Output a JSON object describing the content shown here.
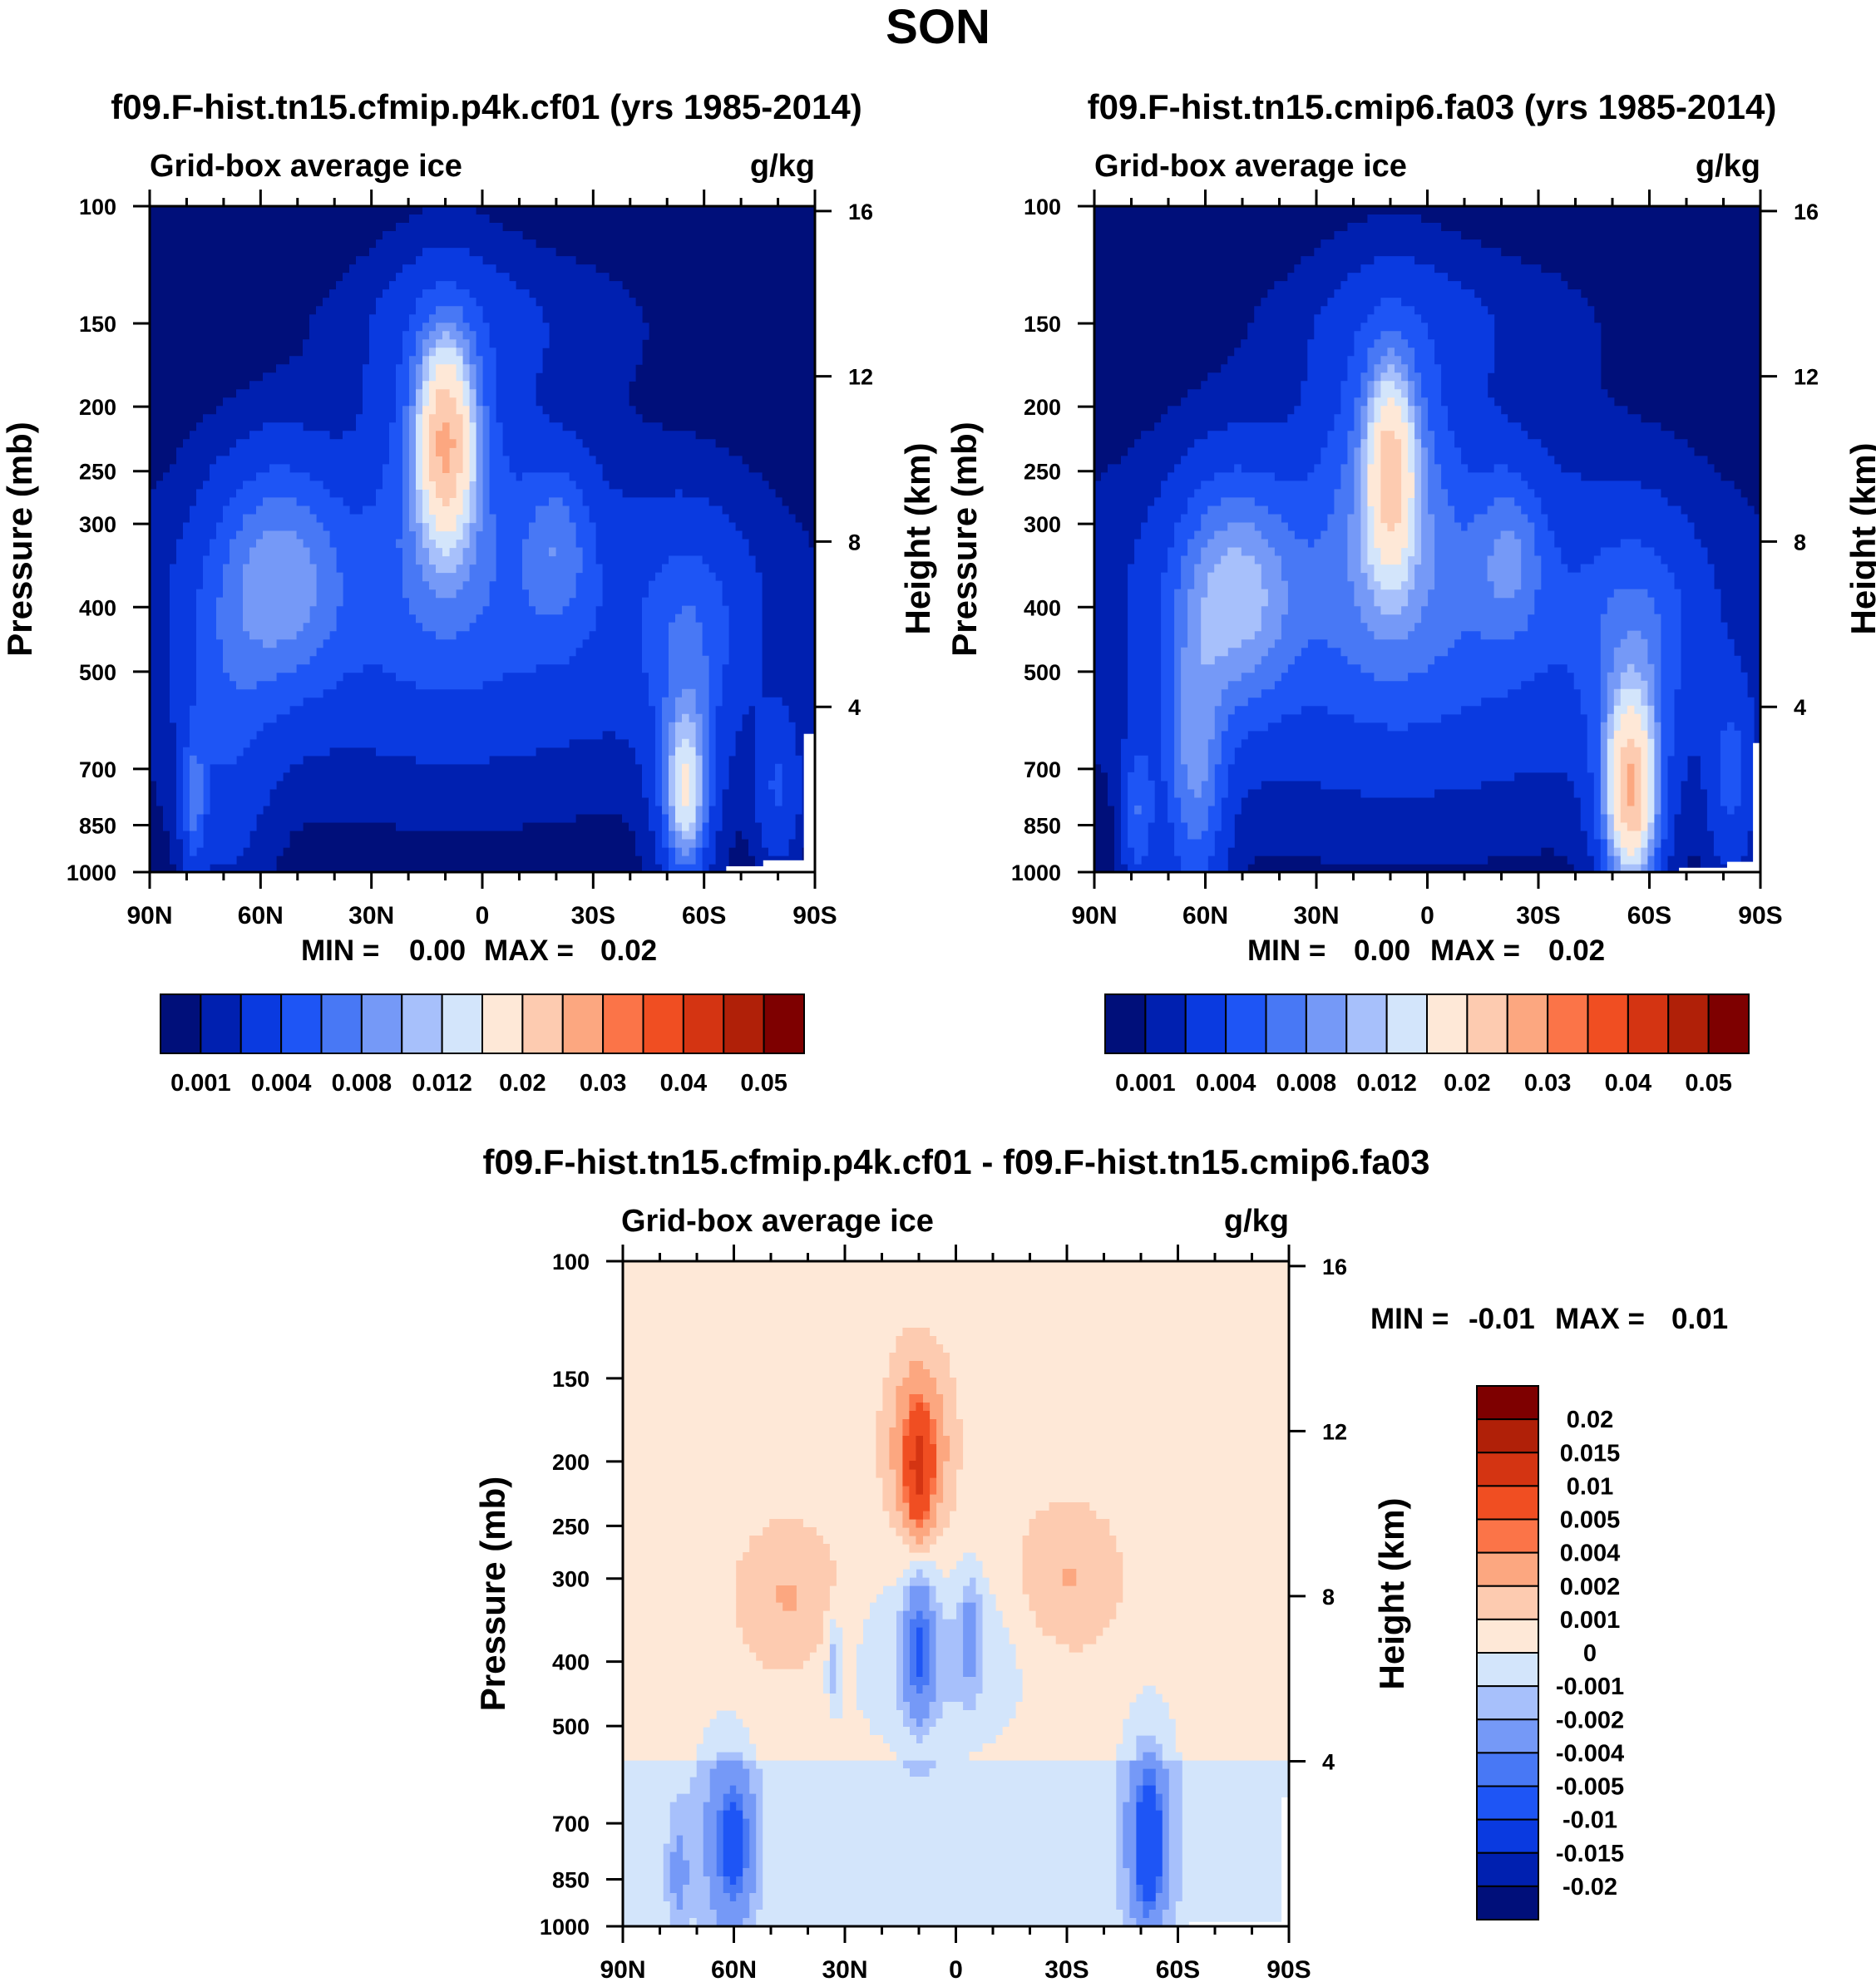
{
  "figure": {
    "title": "SON"
  },
  "colors": {
    "sequential": [
      "#000f7a",
      "#0020b0",
      "#0a3ae0",
      "#1e55f5",
      "#4878f5",
      "#7599f7",
      "#a7c0fb",
      "#d3e5fb",
      "#fee8d7",
      "#fdcbb0",
      "#fca780",
      "#fb7448",
      "#f04e22",
      "#d43412",
      "#b02008",
      "#7e0000"
    ],
    "diverging": [
      "#000f7a",
      "#0020b0",
      "#0a3ae0",
      "#1e55f5",
      "#4878f5",
      "#7599f7",
      "#a7c0fb",
      "#d3e5fb",
      "#fee8d7",
      "#fdcbb0",
      "#fca780",
      "#fb7448",
      "#f04e22",
      "#d43412",
      "#b02008",
      "#7e0000"
    ],
    "missing": "#ffffff"
  },
  "chart_data": [
    {
      "id": "panel1",
      "type": "heatmap",
      "subtype": "filled-contour",
      "title": "f09.F-hist.tn15.cfmip.p4k.cf01 (yrs 1985-2014)",
      "subtitle_left": "Grid-box average ice",
      "subtitle_right": "g/kg",
      "ylabel": "Pressure (mb)",
      "ylabel_right": "Height (km)",
      "x_ticks": [
        "90N",
        "60N",
        "30N",
        "0",
        "30S",
        "60S",
        "90S"
      ],
      "y_ticks": [
        "100",
        "150",
        "200",
        "250",
        "300",
        "400",
        "500",
        "700",
        "850",
        "1000"
      ],
      "y_values": [
        100,
        150,
        200,
        250,
        300,
        400,
        500,
        700,
        850,
        1000
      ],
      "right_ticks": [
        "16",
        "12",
        "8",
        "4"
      ],
      "right_values": [
        16,
        12,
        8,
        4
      ],
      "stats": {
        "min_label": "MIN =",
        "min": "0.00",
        "max_label": "MAX =",
        "max": "0.02"
      },
      "colorbar": {
        "orientation": "horizontal",
        "labels": [
          "0.001",
          "0.004",
          "0.008",
          "0.012",
          "0.02",
          "0.03",
          "0.04",
          "0.05"
        ]
      },
      "blobs": [
        {
          "lat": 5,
          "p": 420,
          "dlat": 75,
          "dz": 0.55,
          "amp": 0.0025
        },
        {
          "lat": 5,
          "p": 390,
          "dlat": 55,
          "dz": 0.42,
          "amp": 0.0015
        },
        {
          "lat": 10,
          "p": 225,
          "dlat": 7,
          "dz": 0.32,
          "amp": 0.02
        },
        {
          "lat": 10,
          "p": 240,
          "dlat": 17,
          "dz": 0.55,
          "amp": 0.005
        },
        {
          "lat": 55,
          "p": 360,
          "dlat": 16,
          "dz": 0.38,
          "amp": 0.007
        },
        {
          "lat": -20,
          "p": 320,
          "dlat": 9,
          "dz": 0.28,
          "amp": 0.0045
        },
        {
          "lat": 70,
          "p": 600,
          "dlat": 12,
          "dz": 0.55,
          "amp": 0.003
        },
        {
          "lat": 78,
          "p": 780,
          "dlat": 3,
          "dz": 0.22,
          "amp": 0.005
        },
        {
          "lat": -55,
          "p": 760,
          "dlat": 5,
          "dz": 0.25,
          "amp": 0.011
        },
        {
          "lat": -55,
          "p": 640,
          "dlat": 9,
          "dz": 0.45,
          "amp": 0.004
        },
        {
          "lat": -58,
          "p": 420,
          "dlat": 15,
          "dz": 0.35,
          "amp": 0.0025
        },
        {
          "lat": -80,
          "p": 750,
          "dlat": 6,
          "dz": 0.25,
          "amp": 0.0035
        },
        {
          "lat": 0,
          "p": 150,
          "dlat": 40,
          "dz": 0.25,
          "amp": 0.0015
        }
      ],
      "base": 0.0005,
      "missing": [
        {
          "lat_min": -90,
          "lat_max": -87,
          "p_min": 620,
          "p_max": 1000
        },
        {
          "lat_min": -90,
          "lat_max": -76,
          "p_min": 960,
          "p_max": 1000
        },
        {
          "lat_min": -90,
          "lat_max": -66,
          "p_min": 980,
          "p_max": 1000
        }
      ]
    },
    {
      "id": "panel2",
      "type": "heatmap",
      "subtype": "filled-contour",
      "title": "f09.F-hist.tn15.cmip6.fa03 (yrs 1985-2014)",
      "subtitle_left": "Grid-box average ice",
      "subtitle_right": "g/kg",
      "ylabel": "Pressure (mb)",
      "ylabel_right": "Height (km)",
      "x_ticks": [
        "90N",
        "60N",
        "30N",
        "0",
        "30S",
        "60S",
        "90S"
      ],
      "y_ticks": [
        "100",
        "150",
        "200",
        "250",
        "300",
        "400",
        "500",
        "700",
        "850",
        "1000"
      ],
      "y_values": [
        100,
        150,
        200,
        250,
        300,
        400,
        500,
        700,
        850,
        1000
      ],
      "right_ticks": [
        "16",
        "12",
        "8",
        "4"
      ],
      "right_values": [
        16,
        12,
        8,
        4
      ],
      "stats": {
        "min_label": "MIN =",
        "min": "0.00",
        "max_label": "MAX =",
        "max": "0.02"
      },
      "colorbar": {
        "orientation": "horizontal",
        "labels": [
          "0.001",
          "0.004",
          "0.008",
          "0.012",
          "0.02",
          "0.03",
          "0.04",
          "0.05"
        ]
      },
      "blobs": [
        {
          "lat": 5,
          "p": 430,
          "dlat": 75,
          "dz": 0.6,
          "amp": 0.003
        },
        {
          "lat": 5,
          "p": 390,
          "dlat": 55,
          "dz": 0.45,
          "amp": 0.002
        },
        {
          "lat": 10,
          "p": 250,
          "dlat": 6,
          "dz": 0.32,
          "amp": 0.016
        },
        {
          "lat": 10,
          "p": 260,
          "dlat": 17,
          "dz": 0.55,
          "amp": 0.006
        },
        {
          "lat": 52,
          "p": 380,
          "dlat": 15,
          "dz": 0.38,
          "amp": 0.008
        },
        {
          "lat": -22,
          "p": 330,
          "dlat": 9,
          "dz": 0.28,
          "amp": 0.0045
        },
        {
          "lat": 63,
          "p": 690,
          "dlat": 8,
          "dz": 0.45,
          "amp": 0.007
        },
        {
          "lat": 78,
          "p": 820,
          "dlat": 4,
          "dz": 0.25,
          "amp": 0.005
        },
        {
          "lat": -55,
          "p": 760,
          "dlat": 6,
          "dz": 0.28,
          "amp": 0.02
        },
        {
          "lat": -55,
          "p": 660,
          "dlat": 10,
          "dz": 0.45,
          "amp": 0.005
        },
        {
          "lat": -58,
          "p": 430,
          "dlat": 15,
          "dz": 0.35,
          "amp": 0.003
        },
        {
          "lat": -82,
          "p": 720,
          "dlat": 6,
          "dz": 0.3,
          "amp": 0.004
        },
        {
          "lat": 0,
          "p": 150,
          "dlat": 40,
          "dz": 0.25,
          "amp": 0.0015
        }
      ],
      "base": 0.0005,
      "missing": [
        {
          "lat_min": -90,
          "lat_max": -88,
          "p_min": 640,
          "p_max": 1000
        },
        {
          "lat_min": -90,
          "lat_max": -81,
          "p_min": 965,
          "p_max": 1000
        },
        {
          "lat_min": -90,
          "lat_max": -68,
          "p_min": 985,
          "p_max": 1000
        }
      ]
    },
    {
      "id": "panel3",
      "type": "heatmap",
      "subtype": "filled-contour-difference",
      "title": "f09.F-hist.tn15.cfmip.p4k.cf01 - f09.F-hist.tn15.cmip6.fa03",
      "subtitle_left": "Grid-box average ice",
      "subtitle_right": "g/kg",
      "ylabel": "Pressure (mb)",
      "ylabel_right": "Height (km)",
      "x_ticks": [
        "90N",
        "60N",
        "30N",
        "0",
        "30S",
        "60S",
        "90S"
      ],
      "y_ticks": [
        "100",
        "150",
        "200",
        "250",
        "300",
        "400",
        "500",
        "700",
        "850",
        "1000"
      ],
      "y_values": [
        100,
        150,
        200,
        250,
        300,
        400,
        500,
        700,
        850,
        1000
      ],
      "right_ticks": [
        "16",
        "12",
        "8",
        "4"
      ],
      "right_values": [
        16,
        12,
        8,
        4
      ],
      "stats": {
        "min_label": "MIN =",
        "min": "-0.01",
        "max_label": "MAX =",
        "max": "0.01"
      },
      "colorbar": {
        "orientation": "vertical",
        "labels": [
          "0.02",
          "0.015",
          "0.01",
          "0.005",
          "0.004",
          "0.002",
          "0.001",
          "0",
          "-0.001",
          "-0.002",
          "-0.004",
          "-0.005",
          "-0.01",
          "-0.015",
          "-0.02"
        ]
      },
      "levels": [
        -0.02,
        -0.015,
        -0.01,
        -0.005,
        -0.004,
        -0.002,
        -0.001,
        0,
        0.001,
        0.002,
        0.004,
        0.005,
        0.01,
        0.015,
        0.02
      ],
      "base_pos": 0.0005,
      "base_neg": -0.0005,
      "base_cut_p": 560,
      "blobs": [
        {
          "lat": 10,
          "p": 205,
          "dlat": 3,
          "dz": 0.18,
          "amp": 0.009
        },
        {
          "lat": 10,
          "p": 190,
          "dlat": 8,
          "dz": 0.3,
          "amp": 0.0035
        },
        {
          "lat": 45,
          "p": 320,
          "dlat": 14,
          "dz": 0.25,
          "amp": 0.0016
        },
        {
          "lat": -30,
          "p": 300,
          "dlat": 14,
          "dz": 0.25,
          "amp": 0.0016
        },
        {
          "lat": 10,
          "p": 380,
          "dlat": 4,
          "dz": 0.25,
          "amp": -0.0045
        },
        {
          "lat": 5,
          "p": 400,
          "dlat": 22,
          "dz": 0.3,
          "amp": -0.0018
        },
        {
          "lat": -4,
          "p": 360,
          "dlat": 3,
          "dz": 0.2,
          "amp": -0.0022
        },
        {
          "lat": 33,
          "p": 400,
          "dlat": 2,
          "dz": 0.15,
          "amp": -0.0022
        },
        {
          "lat": 60,
          "p": 760,
          "dlat": 5,
          "dz": 0.25,
          "amp": -0.0045
        },
        {
          "lat": 63,
          "p": 720,
          "dlat": 8,
          "dz": 0.35,
          "amp": -0.0018
        },
        {
          "lat": 75,
          "p": 830,
          "dlat": 3,
          "dz": 0.2,
          "amp": -0.002
        },
        {
          "lat": -52,
          "p": 760,
          "dlat": 4,
          "dz": 0.25,
          "amp": -0.006
        },
        {
          "lat": -52,
          "p": 700,
          "dlat": 8,
          "dz": 0.4,
          "amp": -0.002
        }
      ],
      "missing": [
        {
          "lat_min": -90,
          "lat_max": -88,
          "p_min": 640,
          "p_max": 1000
        },
        {
          "lat_min": -90,
          "lat_max": -63,
          "p_min": 985,
          "p_max": 1000
        }
      ]
    }
  ]
}
